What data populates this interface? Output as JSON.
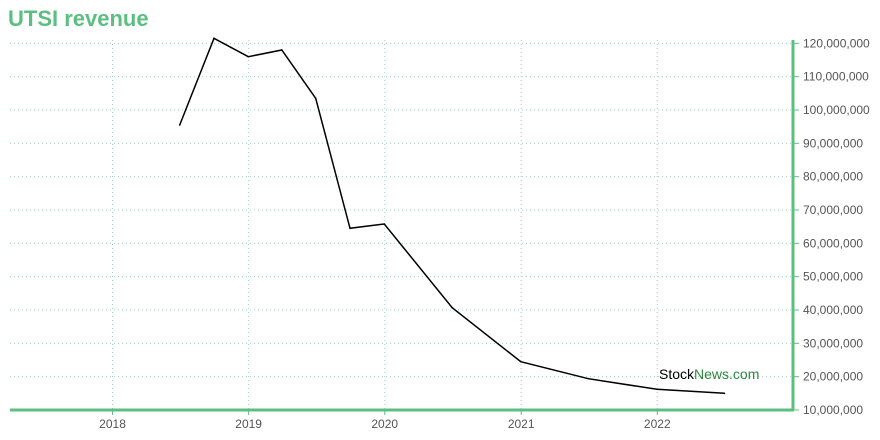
{
  "title": "UTSI revenue",
  "watermark": {
    "part1": "Stock",
    "part2": "News",
    "part3": ".com"
  },
  "colors": {
    "accent": "#5cbf82",
    "line": "#000000",
    "grid": "#9fd3c7"
  },
  "chart_data": {
    "type": "line",
    "title": "UTSI revenue",
    "xlabel": "",
    "ylabel": "",
    "x_ticks": [
      "2018",
      "2019",
      "2020",
      "2021",
      "2022"
    ],
    "y_ticks": [
      "10,000,000",
      "20,000,000",
      "30,000,000",
      "40,000,000",
      "50,000,000",
      "60,000,000",
      "70,000,000",
      "80,000,000",
      "90,000,000",
      "100,000,000",
      "110,000,000",
      "120,000,000"
    ],
    "xlim": [
      "2017-04-01",
      "2022-12-31"
    ],
    "ylim": [
      10000000,
      121000000
    ],
    "y_axis_position": "right",
    "grid": true,
    "series": [
      {
        "x": [
          "2018-06-30",
          "2018-09-30",
          "2018-12-31",
          "2019-03-31",
          "2019-06-30",
          "2019-09-30",
          "2019-12-31",
          "2020-06-30",
          "2020-12-31",
          "2021-06-30",
          "2021-12-31",
          "2022-06-30"
        ],
        "values": [
          95500000,
          121500000,
          116000000,
          118000000,
          103500000,
          64500000,
          65800000,
          40700000,
          24500000,
          19400000,
          16200000,
          15000000
        ]
      }
    ]
  }
}
